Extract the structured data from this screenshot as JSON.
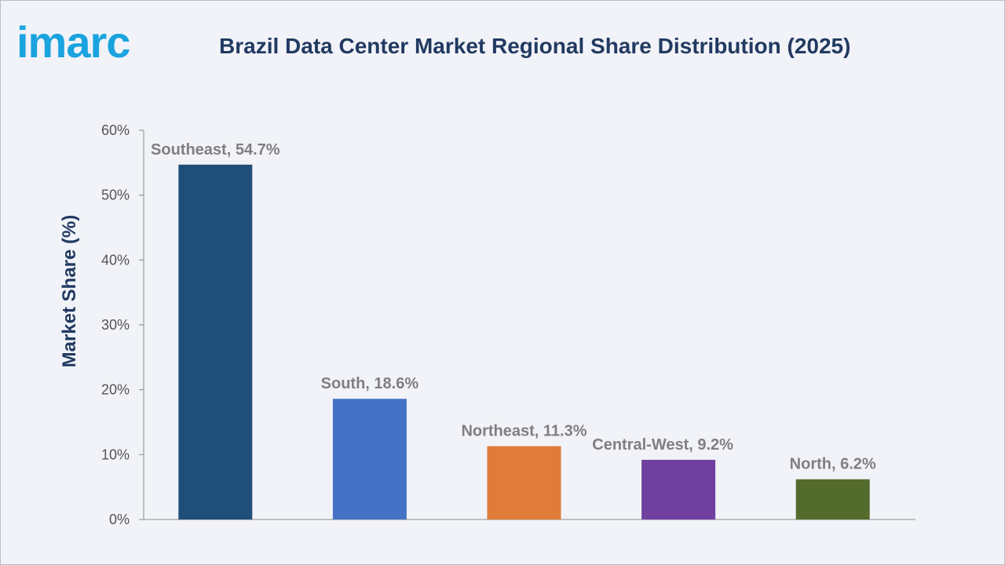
{
  "brand": {
    "logo_text": "imarc",
    "logo_color": "#1aa3df"
  },
  "header": {
    "title": "Brazil Data Center Market Regional Share Distribution (2025)"
  },
  "chart_data": {
    "type": "bar",
    "title": "Brazil Data Center Market Regional Share Distribution (2025)",
    "xlabel": "",
    "ylabel": "Market Share (%)",
    "ylim": [
      0,
      60
    ],
    "yticks": [
      "0%",
      "10%",
      "20%",
      "30%",
      "40%",
      "50%",
      "60%"
    ],
    "ytick_values": [
      0,
      10,
      20,
      30,
      40,
      50,
      60
    ],
    "grid": false,
    "categories": [
      "Southeast",
      "South",
      "Northeast",
      "Central-West",
      "North"
    ],
    "values": [
      54.7,
      18.6,
      11.3,
      9.2,
      6.2
    ],
    "data_labels": [
      "Southeast, 54.7%",
      "South, 18.6%",
      "Northeast, 11.3%",
      "Central-West, 9.2%",
      "North, 6.2%"
    ],
    "colors": [
      "#1f4e79",
      "#4472c4",
      "#e07b39",
      "#7040a0",
      "#546b2e"
    ]
  }
}
